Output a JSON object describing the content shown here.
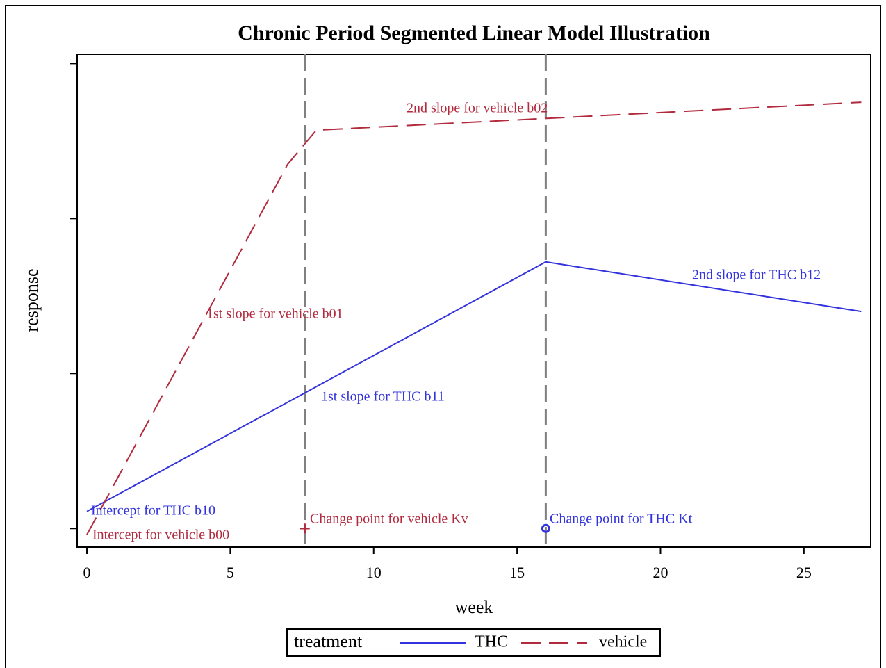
{
  "chart_data": {
    "type": "line",
    "title": "Chronic Period Segmented Linear Model Illustration",
    "x_label": "week",
    "y_label": "response",
    "xlim": [
      -0.34,
      27.33
    ],
    "xticks": [
      0,
      5,
      10,
      15,
      20,
      25
    ],
    "ylim": [
      -0.12,
      3.06
    ],
    "yticks": [
      0,
      1,
      2,
      3
    ],
    "legend_title": "treatment",
    "legend_position": "bottom",
    "series": [
      {
        "name": "THC",
        "color": "#3333dd",
        "line_style": "solid",
        "x": [
          0,
          16,
          27
        ],
        "values": [
          0.11,
          1.72,
          1.4
        ]
      },
      {
        "name": "vehicle",
        "color": "#b22a3e",
        "line_style": "dashed",
        "x": [
          0,
          7,
          8,
          27
        ],
        "values": [
          -0.04,
          2.35,
          2.57,
          2.75
        ]
      }
    ],
    "reference_lines": [
      7.6,
      16
    ],
    "markers": [
      {
        "x": 7.6,
        "y": 0,
        "shape": "plus",
        "color": "#b22a3e"
      },
      {
        "x": 16,
        "y": 0,
        "shape": "circle",
        "color": "#3333dd"
      }
    ],
    "annotations": [
      {
        "text": "2nd slope for vehicle b02",
        "color": "#b22a3e"
      },
      {
        "text": "1st slope for vehicle b01",
        "color": "#b22a3e"
      },
      {
        "text": "2nd slope for THC b12",
        "color": "#3333dd"
      },
      {
        "text": "1st slope for THC b11",
        "color": "#3333dd"
      },
      {
        "text": "Intercept for THC b10",
        "color": "#3333dd"
      },
      {
        "text": "Intercept for vehicle b00",
        "color": "#b22a3e"
      },
      {
        "text": "Change point for vehicle Kv",
        "color": "#b22a3e"
      },
      {
        "text": "Change point for THC Kt",
        "color": "#3333dd"
      }
    ]
  }
}
